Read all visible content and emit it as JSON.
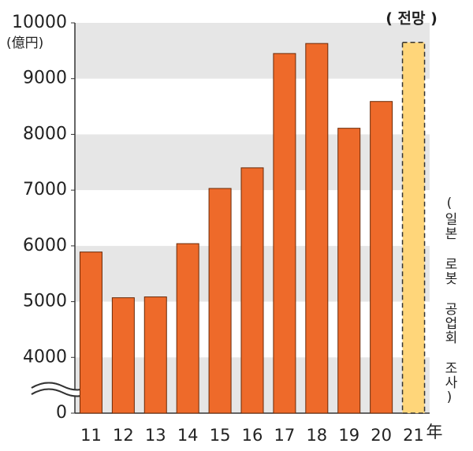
{
  "chart_data": {
    "type": "bar",
    "unit_label": "(億円)",
    "forecast_label": "( 전망 )",
    "source": "(일본 로봇 공업회 조사)",
    "categories": [
      "11",
      "12",
      "13",
      "14",
      "15",
      "16",
      "17",
      "18",
      "19",
      "20",
      "21"
    ],
    "x_unit": "年",
    "values": [
      5890,
      5070,
      5085,
      6040,
      7030,
      7400,
      9450,
      9630,
      8110,
      8590,
      9650
    ],
    "colors": [
      "#ee6a2a",
      "#ee6a2a",
      "#ee6a2a",
      "#ee6a2a",
      "#ee6a2a",
      "#ee6a2a",
      "#ee6a2a",
      "#ee6a2a",
      "#ee6a2a",
      "#ee6a2a",
      "#ffd67a"
    ],
    "dashed": [
      false,
      false,
      false,
      false,
      false,
      false,
      false,
      false,
      false,
      false,
      true
    ],
    "ylim": [
      0,
      10000
    ],
    "yticks": [
      0,
      4000,
      5000,
      6000,
      7000,
      8000,
      9000,
      10000
    ],
    "axis_break": true,
    "banded_grid": true
  }
}
